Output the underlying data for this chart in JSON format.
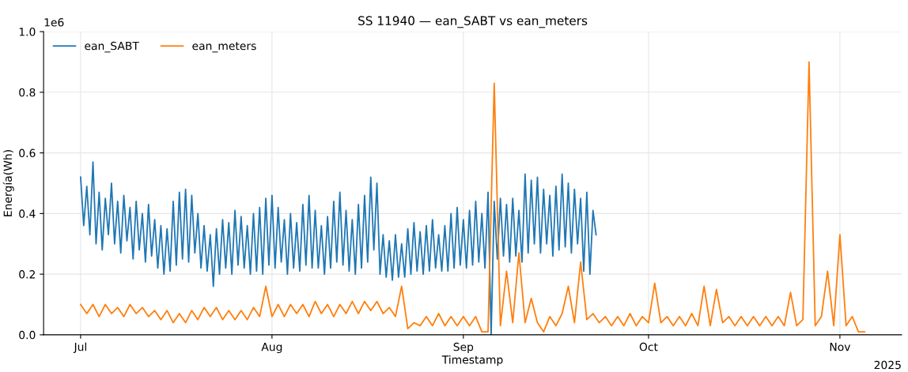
{
  "chart_data": {
    "type": "line",
    "title": "SS 11940 — ean_SABT vs ean_meters",
    "xlabel": "Timestamp",
    "ylabel": "Energía(Wh)",
    "annotations": [
      "1e6",
      "2025"
    ],
    "xlim": [
      "2025-06-25",
      "2025-11-11"
    ],
    "xticks": [
      {
        "value": "2025-07-01",
        "label": "Jul"
      },
      {
        "value": "2025-08-01",
        "label": "Aug"
      },
      {
        "value": "2025-09-01",
        "label": "Sep"
      },
      {
        "value": "2025-10-01",
        "label": "Oct"
      },
      {
        "value": "2025-11-01",
        "label": "Nov"
      }
    ],
    "ylim": [
      0,
      1.0
    ],
    "yticks": [
      {
        "value": 0,
        "label": "0.0"
      },
      {
        "value": 0.2,
        "label": "0.2"
      },
      {
        "value": 0.4,
        "label": "0.4"
      },
      {
        "value": 0.6,
        "label": "0.6"
      },
      {
        "value": 0.8,
        "label": "0.8"
      },
      {
        "value": 1.0,
        "label": "1.0"
      }
    ],
    "grid": true,
    "legend": "top left",
    "line_style": "solid",
    "marker": "none",
    "series": [
      {
        "name": "ean_SABT",
        "color": "#1f77b4",
        "x": [
          "2025-07-01T00:00",
          "2025-07-01T12:00",
          "2025-07-02T00:00",
          "2025-07-02T12:00",
          "2025-07-03T00:00",
          "2025-07-03T12:00",
          "2025-07-04T00:00",
          "2025-07-04T12:00",
          "2025-07-05T00:00",
          "2025-07-05T12:00",
          "2025-07-06T00:00",
          "2025-07-06T12:00",
          "2025-07-07T00:00",
          "2025-07-07T12:00",
          "2025-07-08T00:00",
          "2025-07-08T12:00",
          "2025-07-09T00:00",
          "2025-07-09T12:00",
          "2025-07-10T00:00",
          "2025-07-10T12:00",
          "2025-07-11T00:00",
          "2025-07-11T12:00",
          "2025-07-12T00:00",
          "2025-07-12T12:00",
          "2025-07-13T00:00",
          "2025-07-13T12:00",
          "2025-07-14T00:00",
          "2025-07-14T12:00",
          "2025-07-15T00:00",
          "2025-07-15T12:00",
          "2025-07-16T00:00",
          "2025-07-16T12:00",
          "2025-07-17T00:00",
          "2025-07-17T12:00",
          "2025-07-18T00:00",
          "2025-07-18T12:00",
          "2025-07-19T00:00",
          "2025-07-19T12:00",
          "2025-07-20T00:00",
          "2025-07-20T12:00",
          "2025-07-21T00:00",
          "2025-07-21T12:00",
          "2025-07-22T00:00",
          "2025-07-22T12:00",
          "2025-07-23T00:00",
          "2025-07-23T12:00",
          "2025-07-24T00:00",
          "2025-07-24T12:00",
          "2025-07-25T00:00",
          "2025-07-25T12:00",
          "2025-07-26T00:00",
          "2025-07-26T12:00",
          "2025-07-27T00:00",
          "2025-07-27T12:00",
          "2025-07-28T00:00",
          "2025-07-28T12:00",
          "2025-07-29T00:00",
          "2025-07-29T12:00",
          "2025-07-30T00:00",
          "2025-07-30T12:00",
          "2025-07-31T00:00",
          "2025-07-31T12:00",
          "2025-08-01T00:00",
          "2025-08-01T12:00",
          "2025-08-02T00:00",
          "2025-08-02T12:00",
          "2025-08-03T00:00",
          "2025-08-03T12:00",
          "2025-08-04T00:00",
          "2025-08-04T12:00",
          "2025-08-05T00:00",
          "2025-08-05T12:00",
          "2025-08-06T00:00",
          "2025-08-06T12:00",
          "2025-08-07T00:00",
          "2025-08-07T12:00",
          "2025-08-08T00:00",
          "2025-08-08T12:00",
          "2025-08-09T00:00",
          "2025-08-09T12:00",
          "2025-08-10T00:00",
          "2025-08-10T12:00",
          "2025-08-11T00:00",
          "2025-08-11T12:00",
          "2025-08-12T00:00",
          "2025-08-12T12:00",
          "2025-08-13T00:00",
          "2025-08-13T12:00",
          "2025-08-14T00:00",
          "2025-08-14T12:00",
          "2025-08-15T00:00",
          "2025-08-15T12:00",
          "2025-08-16T00:00",
          "2025-08-16T12:00",
          "2025-08-17T00:00",
          "2025-08-17T12:00",
          "2025-08-18T00:00",
          "2025-08-18T12:00",
          "2025-08-19T00:00",
          "2025-08-19T12:00",
          "2025-08-20T00:00",
          "2025-08-20T12:00",
          "2025-08-21T00:00",
          "2025-08-21T12:00",
          "2025-08-22T00:00",
          "2025-08-22T12:00",
          "2025-08-23T00:00",
          "2025-08-23T12:00",
          "2025-08-24T00:00",
          "2025-08-24T12:00",
          "2025-08-25T00:00",
          "2025-08-25T12:00",
          "2025-08-26T00:00",
          "2025-08-26T12:00",
          "2025-08-27T00:00",
          "2025-08-27T12:00",
          "2025-08-28T00:00",
          "2025-08-28T12:00",
          "2025-08-29T00:00",
          "2025-08-29T12:00",
          "2025-08-30T00:00",
          "2025-08-30T12:00",
          "2025-08-31T00:00",
          "2025-08-31T12:00",
          "2025-09-01T00:00",
          "2025-09-01T12:00",
          "2025-09-02T00:00",
          "2025-09-02T12:00",
          "2025-09-03T00:00",
          "2025-09-03T12:00",
          "2025-09-04T00:00",
          "2025-09-04T12:00",
          "2025-09-05T00:00",
          "2025-09-05T12:00",
          "2025-09-06T00:00",
          "2025-09-06T12:00",
          "2025-09-07T00:00",
          "2025-09-07T12:00",
          "2025-09-08T00:00",
          "2025-09-08T12:00",
          "2025-09-09T00:00",
          "2025-09-09T12:00",
          "2025-09-10T00:00",
          "2025-09-10T12:00",
          "2025-09-11T00:00",
          "2025-09-11T12:00",
          "2025-09-12T00:00",
          "2025-09-12T12:00",
          "2025-09-13T00:00",
          "2025-09-13T12:00",
          "2025-09-14T00:00",
          "2025-09-14T12:00",
          "2025-09-15T00:00",
          "2025-09-15T12:00",
          "2025-09-16T00:00",
          "2025-09-16T12:00",
          "2025-09-17T00:00",
          "2025-09-17T12:00",
          "2025-09-18T00:00",
          "2025-09-18T12:00",
          "2025-09-19T00:00",
          "2025-09-19T12:00",
          "2025-09-20T00:00",
          "2025-09-20T12:00",
          "2025-09-21T00:00",
          "2025-09-21T12:00",
          "2025-09-22T00:00",
          "2025-09-22T12:00"
        ],
        "values": [
          0.52,
          0.36,
          0.49,
          0.33,
          0.57,
          0.3,
          0.47,
          0.28,
          0.45,
          0.33,
          0.5,
          0.3,
          0.44,
          0.27,
          0.46,
          0.31,
          0.42,
          0.25,
          0.44,
          0.28,
          0.4,
          0.24,
          0.43,
          0.26,
          0.38,
          0.22,
          0.36,
          0.2,
          0.35,
          0.21,
          0.44,
          0.23,
          0.47,
          0.25,
          0.48,
          0.24,
          0.46,
          0.27,
          0.4,
          0.22,
          0.36,
          0.21,
          0.33,
          0.16,
          0.35,
          0.2,
          0.38,
          0.22,
          0.37,
          0.2,
          0.41,
          0.23,
          0.39,
          0.22,
          0.36,
          0.2,
          0.4,
          0.21,
          0.42,
          0.2,
          0.45,
          0.23,
          0.46,
          0.22,
          0.42,
          0.24,
          0.38,
          0.2,
          0.4,
          0.22,
          0.37,
          0.21,
          0.43,
          0.23,
          0.46,
          0.22,
          0.41,
          0.22,
          0.36,
          0.2,
          0.39,
          0.22,
          0.44,
          0.24,
          0.47,
          0.23,
          0.41,
          0.21,
          0.38,
          0.2,
          0.43,
          0.22,
          0.46,
          0.24,
          0.52,
          0.28,
          0.5,
          0.2,
          0.33,
          0.19,
          0.31,
          0.18,
          0.33,
          0.19,
          0.3,
          0.19,
          0.35,
          0.2,
          0.37,
          0.21,
          0.34,
          0.2,
          0.36,
          0.21,
          0.38,
          0.22,
          0.33,
          0.21,
          0.36,
          0.21,
          0.4,
          0.22,
          0.42,
          0.23,
          0.38,
          0.22,
          0.41,
          0.23,
          0.44,
          0.24,
          0.4,
          0.22,
          0.47,
          0.0,
          0.44,
          0.25,
          0.45,
          0.26,
          0.43,
          0.24,
          0.45,
          0.26,
          0.41,
          0.24,
          0.53,
          0.27,
          0.51,
          0.3,
          0.52,
          0.27,
          0.48,
          0.3,
          0.46,
          0.26,
          0.49,
          0.28,
          0.53,
          0.29,
          0.5,
          0.27,
          0.48,
          0.3,
          0.45,
          0.21,
          0.47,
          0.2,
          0.41,
          0.33
        ]
      },
      {
        "name": "ean_meters",
        "color": "#ff7f0e",
        "x": [
          "2025-07-01",
          "2025-07-02",
          "2025-07-03",
          "2025-07-04",
          "2025-07-05",
          "2025-07-06",
          "2025-07-07",
          "2025-07-08",
          "2025-07-09",
          "2025-07-10",
          "2025-07-11",
          "2025-07-12",
          "2025-07-13",
          "2025-07-14",
          "2025-07-15",
          "2025-07-16",
          "2025-07-17",
          "2025-07-18",
          "2025-07-19",
          "2025-07-20",
          "2025-07-21",
          "2025-07-22",
          "2025-07-23",
          "2025-07-24",
          "2025-07-25",
          "2025-07-26",
          "2025-07-27",
          "2025-07-28",
          "2025-07-29",
          "2025-07-30",
          "2025-07-31",
          "2025-08-01",
          "2025-08-02",
          "2025-08-03",
          "2025-08-04",
          "2025-08-05",
          "2025-08-06",
          "2025-08-07",
          "2025-08-08",
          "2025-08-09",
          "2025-08-10",
          "2025-08-11",
          "2025-08-12",
          "2025-08-13",
          "2025-08-14",
          "2025-08-15",
          "2025-08-16",
          "2025-08-17",
          "2025-08-18",
          "2025-08-19",
          "2025-08-20",
          "2025-08-21",
          "2025-08-22",
          "2025-08-23",
          "2025-08-24",
          "2025-08-25",
          "2025-08-26",
          "2025-08-27",
          "2025-08-28",
          "2025-08-29",
          "2025-08-30",
          "2025-08-31",
          "2025-09-01",
          "2025-09-02",
          "2025-09-03",
          "2025-09-04",
          "2025-09-05",
          "2025-09-06",
          "2025-09-07",
          "2025-09-08",
          "2025-09-09",
          "2025-09-10",
          "2025-09-11",
          "2025-09-12",
          "2025-09-13",
          "2025-09-14",
          "2025-09-15",
          "2025-09-16",
          "2025-09-17",
          "2025-09-18",
          "2025-09-19",
          "2025-09-20",
          "2025-09-21",
          "2025-09-22",
          "2025-09-23",
          "2025-09-24",
          "2025-09-25",
          "2025-09-26",
          "2025-09-27",
          "2025-09-28",
          "2025-09-29",
          "2025-09-30",
          "2025-10-01",
          "2025-10-02",
          "2025-10-03",
          "2025-10-04",
          "2025-10-05",
          "2025-10-06",
          "2025-10-07",
          "2025-10-08",
          "2025-10-09",
          "2025-10-10",
          "2025-10-11",
          "2025-10-12",
          "2025-10-13",
          "2025-10-14",
          "2025-10-15",
          "2025-10-16",
          "2025-10-17",
          "2025-10-18",
          "2025-10-19",
          "2025-10-20",
          "2025-10-21",
          "2025-10-22",
          "2025-10-23",
          "2025-10-24",
          "2025-10-25",
          "2025-10-26",
          "2025-10-27",
          "2025-10-28",
          "2025-10-29",
          "2025-10-30",
          "2025-10-31",
          "2025-11-01",
          "2025-11-02",
          "2025-11-03",
          "2025-11-04",
          "2025-11-05"
        ],
        "values": [
          0.1,
          0.07,
          0.1,
          0.06,
          0.1,
          0.07,
          0.09,
          0.06,
          0.1,
          0.07,
          0.09,
          0.06,
          0.08,
          0.05,
          0.08,
          0.04,
          0.07,
          0.04,
          0.08,
          0.05,
          0.09,
          0.06,
          0.09,
          0.05,
          0.08,
          0.05,
          0.08,
          0.05,
          0.09,
          0.06,
          0.16,
          0.06,
          0.1,
          0.06,
          0.1,
          0.07,
          0.1,
          0.06,
          0.11,
          0.07,
          0.1,
          0.06,
          0.1,
          0.07,
          0.11,
          0.07,
          0.11,
          0.08,
          0.11,
          0.07,
          0.09,
          0.06,
          0.16,
          0.02,
          0.04,
          0.03,
          0.06,
          0.03,
          0.07,
          0.03,
          0.06,
          0.03,
          0.06,
          0.03,
          0.06,
          0.01,
          0.01,
          0.83,
          0.03,
          0.21,
          0.04,
          0.27,
          0.04,
          0.12,
          0.04,
          0.01,
          0.06,
          0.03,
          0.07,
          0.16,
          0.04,
          0.24,
          0.05,
          0.07,
          0.04,
          0.06,
          0.03,
          0.06,
          0.03,
          0.07,
          0.03,
          0.06,
          0.04,
          0.17,
          0.04,
          0.06,
          0.03,
          0.06,
          0.03,
          0.07,
          0.03,
          0.16,
          0.03,
          0.15,
          0.04,
          0.06,
          0.03,
          0.06,
          0.03,
          0.06,
          0.03,
          0.06,
          0.03,
          0.06,
          0.03,
          0.14,
          0.03,
          0.05,
          0.9,
          0.03,
          0.06,
          0.21,
          0.03,
          0.33,
          0.03,
          0.06,
          0.01,
          0.01
        ]
      }
    ]
  }
}
